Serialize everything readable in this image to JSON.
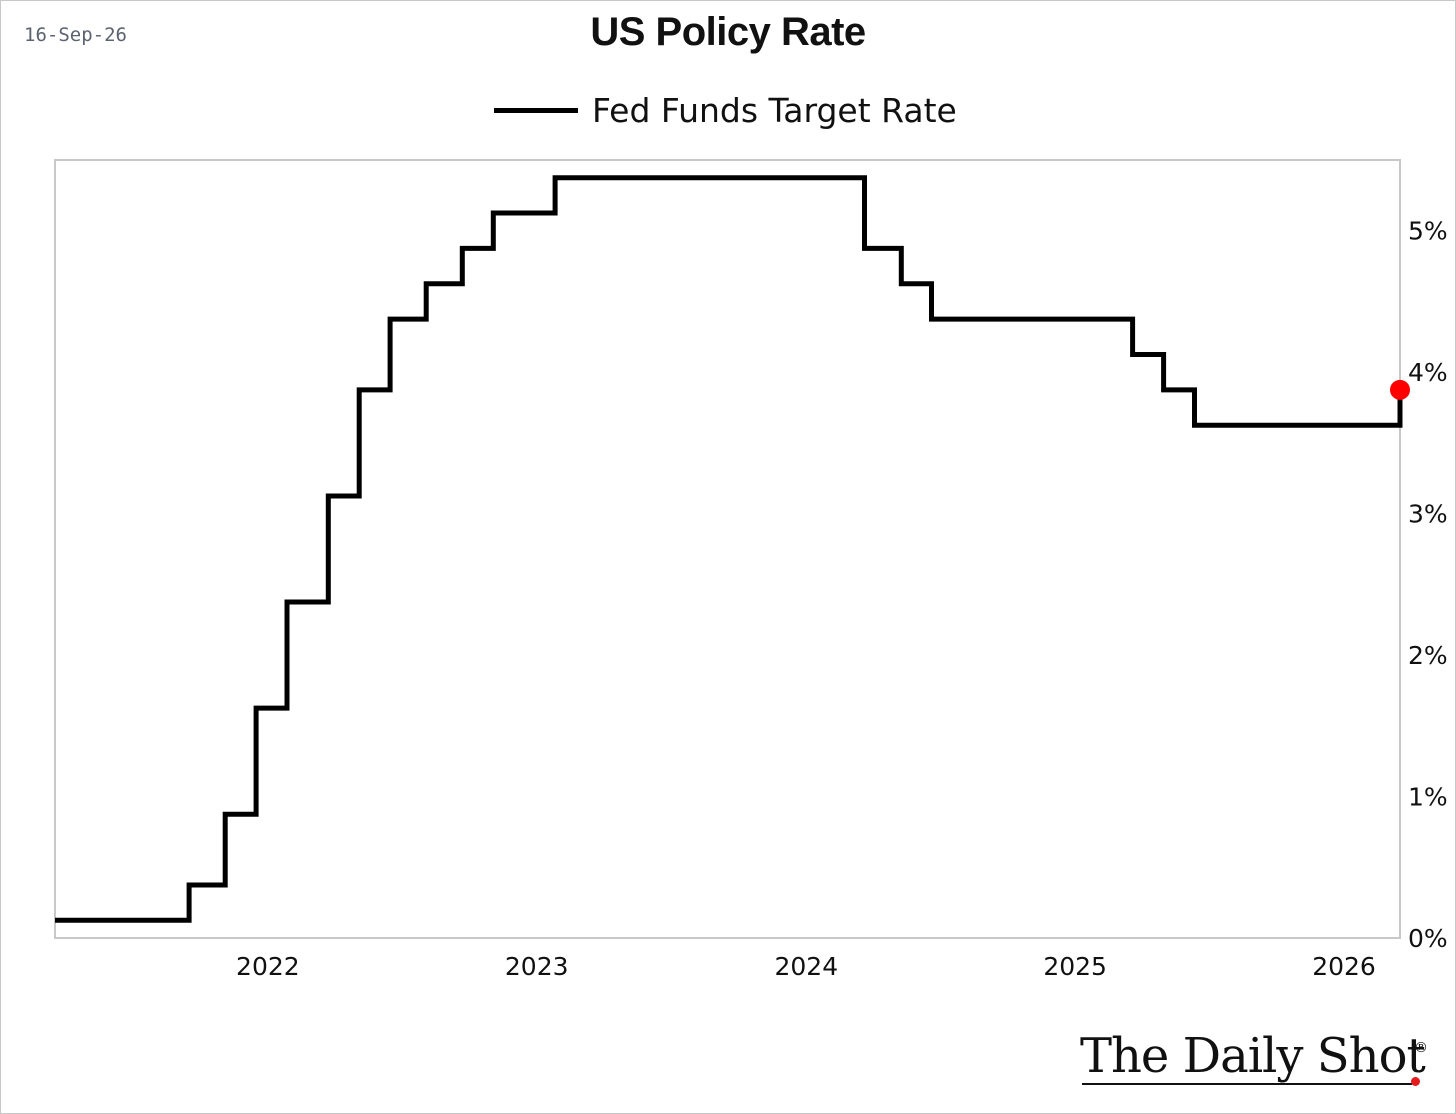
{
  "header": {
    "date": "16-Sep-26",
    "title": "US Policy Rate"
  },
  "legend": {
    "label": "Fed Funds Target Rate"
  },
  "branding": {
    "name": "The Daily Shot",
    "reg_mark": "®"
  },
  "colors": {
    "line": "#000000",
    "last_point": "#ff0000",
    "plot_border": "#c8c8c8"
  },
  "chart_data": {
    "type": "line",
    "title": "US Policy Rate",
    "series": [
      {
        "name": "Fed Funds Target Rate",
        "step": true,
        "points": [
          {
            "x": "2021-09-16",
            "y": 0.125
          },
          {
            "x": "2022-03-17",
            "y": 0.375
          },
          {
            "x": "2022-05-05",
            "y": 0.875
          },
          {
            "x": "2022-06-16",
            "y": 1.625
          },
          {
            "x": "2022-07-28",
            "y": 2.375
          },
          {
            "x": "2022-09-22",
            "y": 3.125
          },
          {
            "x": "2022-11-03",
            "y": 3.875
          },
          {
            "x": "2022-12-15",
            "y": 4.375
          },
          {
            "x": "2023-02-02",
            "y": 4.625
          },
          {
            "x": "2023-03-23",
            "y": 4.875
          },
          {
            "x": "2023-05-04",
            "y": 5.125
          },
          {
            "x": "2023-07-27",
            "y": 5.375
          },
          {
            "x": "2024-09-19",
            "y": 4.875
          },
          {
            "x": "2024-11-08",
            "y": 4.625
          },
          {
            "x": "2024-12-19",
            "y": 4.375
          },
          {
            "x": "2025-09-18",
            "y": 4.125
          },
          {
            "x": "2025-10-30",
            "y": 3.875
          },
          {
            "x": "2025-12-11",
            "y": 3.625
          },
          {
            "x": "2026-09-16",
            "y": 3.875
          }
        ]
      }
    ],
    "last_point_marker": {
      "x": "2026-09-16",
      "y": 3.875
    },
    "x_ticks": [
      "2022",
      "2023",
      "2024",
      "2025",
      "2026"
    ],
    "y_ticks": [
      "0%",
      "1%",
      "2%",
      "3%",
      "4%",
      "5%"
    ],
    "y_tick_values": [
      0,
      1,
      2,
      3,
      4,
      5
    ],
    "xlim": [
      "2021-09-16",
      "2026-09-16"
    ],
    "ylim": [
      0,
      5.5
    ],
    "y_axis_side": "right",
    "grid": false,
    "legend_position": "top-center"
  }
}
